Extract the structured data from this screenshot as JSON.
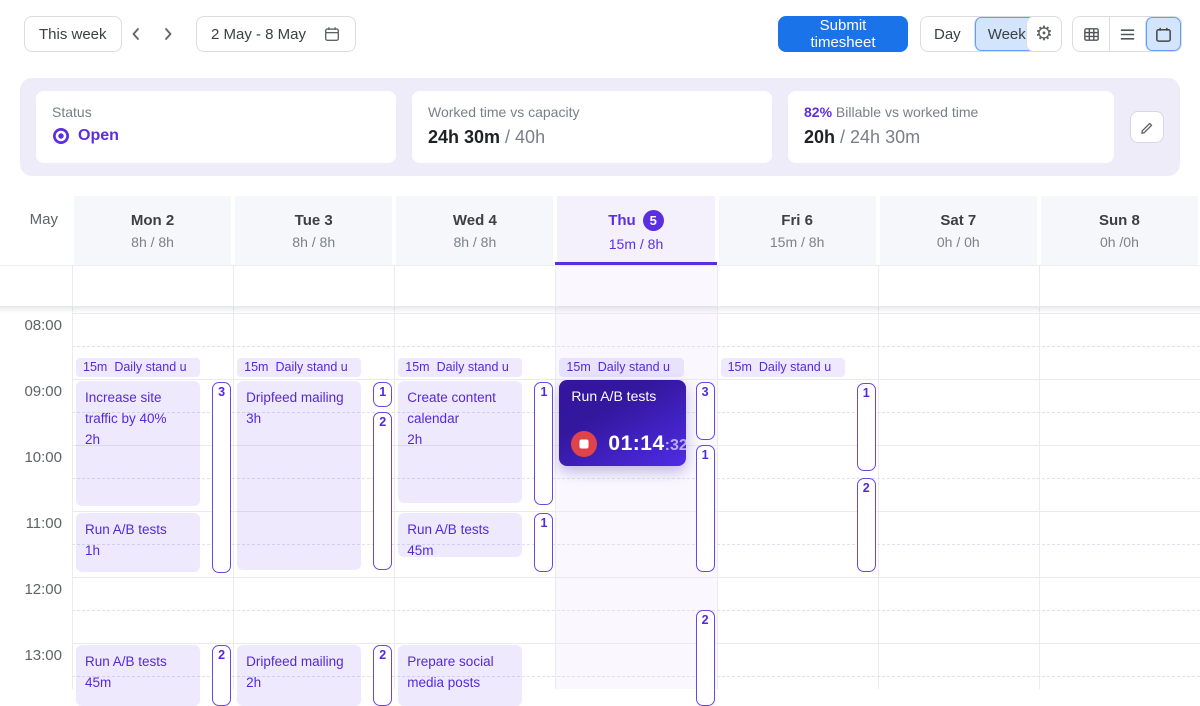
{
  "colors": {
    "accent": "#5b2ee1",
    "event_text": "#5429dd",
    "blue": "#1a73e8",
    "stop_red": "#e0444b"
  },
  "toolbar": {
    "this_week": "This week",
    "date_range": "2 May - 8 May",
    "submit": "Submit timesheet",
    "day": "Day",
    "week": "Week"
  },
  "summary": {
    "status_label": "Status",
    "status_value": "Open",
    "capacity_label": "Worked time vs capacity",
    "capacity_value": "24h 30m",
    "capacity_rest": " / 40h",
    "billable_pct": "82%",
    "billable_label": "Billable vs worked time",
    "billable_value": "20h",
    "billable_rest": " / 24h 30m"
  },
  "calendar": {
    "month_label": "May",
    "time_labels": [
      "08:00",
      "09:00",
      "10:00",
      "11:00",
      "12:00",
      "13:00"
    ],
    "days": [
      {
        "name": "Mon 2",
        "hours": "8h / 8h"
      },
      {
        "name": "Tue 3",
        "hours": "8h / 8h"
      },
      {
        "name": "Wed 4",
        "hours": "8h / 8h"
      },
      {
        "name": "Thu",
        "date_badge": "5",
        "hours": "15m / 8h",
        "selected": true
      },
      {
        "name": "Fri 6",
        "hours": "15m / 8h"
      },
      {
        "name": "Sat 7",
        "hours": "0h / 0h"
      },
      {
        "name": "Sun 8",
        "hours": "0h /0h"
      }
    ],
    "events": [
      {
        "day": 0,
        "type": "pill",
        "prefix": "15m",
        "title": "Daily stand u",
        "start": 8.68,
        "end": 8.97
      },
      {
        "day": 0,
        "type": "block",
        "title": "Increase site traffic by 40%",
        "duration": "2h",
        "start": 9.03,
        "end": 10.92
      },
      {
        "day": 0,
        "type": "block",
        "title": "Run A/B tests",
        "duration": "1h",
        "start": 11.03,
        "end": 11.92
      },
      {
        "day": 0,
        "type": "block",
        "title": "Run A/B tests",
        "duration": "45m",
        "start": 13.03,
        "end": 13.95
      },
      {
        "day": 1,
        "type": "pill",
        "prefix": "15m",
        "title": "Daily stand u",
        "start": 8.68,
        "end": 8.97
      },
      {
        "day": 1,
        "type": "block",
        "title": "Dripfeed mailing",
        "duration": "3h",
        "start": 9.03,
        "end": 11.89
      },
      {
        "day": 1,
        "type": "block",
        "title": "Dripfeed mailing",
        "duration": "2h",
        "start": 13.03,
        "end": 13.95
      },
      {
        "day": 2,
        "type": "pill",
        "prefix": "15m",
        "title": "Daily stand u",
        "start": 8.68,
        "end": 8.97
      },
      {
        "day": 2,
        "type": "block",
        "title": "Create content calendar",
        "duration": "2h",
        "start": 9.03,
        "end": 10.88
      },
      {
        "day": 2,
        "type": "block",
        "title": "Run A/B tests",
        "duration": "45m",
        "start": 11.03,
        "end": 11.7
      },
      {
        "day": 2,
        "type": "block",
        "title": "Prepare social media posts",
        "duration": "",
        "start": 13.03,
        "end": 13.95
      },
      {
        "day": 3,
        "type": "pill",
        "prefix": "15m",
        "title": "Daily stand u",
        "start": 8.68,
        "end": 8.97
      },
      {
        "day": 3,
        "type": "running",
        "title": "Run A/B tests",
        "timer_main": "01:14",
        "timer_sec": ":32",
        "start": 9.02,
        "end": 10.32
      },
      {
        "day": 4,
        "type": "pill",
        "prefix": "15m",
        "title": "Daily stand u",
        "start": 8.68,
        "end": 8.97
      }
    ],
    "badges": [
      {
        "day": 0,
        "count": "3",
        "start": 9.05,
        "end": 11.94
      },
      {
        "day": 0,
        "count": "2",
        "start": 13.03,
        "end": 13.95
      },
      {
        "day": 1,
        "count": "1",
        "start": 9.05,
        "end": 9.42
      },
      {
        "day": 1,
        "count": "2",
        "start": 9.5,
        "end": 11.89
      },
      {
        "day": 1,
        "count": "2",
        "start": 13.03,
        "end": 13.95
      },
      {
        "day": 2,
        "count": "1",
        "start": 9.05,
        "end": 10.91
      },
      {
        "day": 2,
        "count": "1",
        "start": 11.03,
        "end": 11.92
      },
      {
        "day": 3,
        "count": "3",
        "start": 9.05,
        "end": 9.92
      },
      {
        "day": 3,
        "count": "1",
        "start": 10.0,
        "end": 11.92
      },
      {
        "day": 3,
        "count": "2",
        "start": 12.5,
        "end": 13.95
      },
      {
        "day": 4,
        "count": "1",
        "start": 9.06,
        "end": 10.39
      },
      {
        "day": 4,
        "count": "2",
        "start": 10.5,
        "end": 11.92
      }
    ]
  },
  "icons": {
    "calendar": "calendar-icon",
    "chevron_left": "chevron-left-icon",
    "chevron_right": "chevron-right-icon",
    "gear": "gear-icon",
    "table": "table-view-icon",
    "list": "list-view-icon",
    "pencil": "pencil-icon",
    "status_open": "status-open-icon",
    "stop": "stop-icon"
  }
}
